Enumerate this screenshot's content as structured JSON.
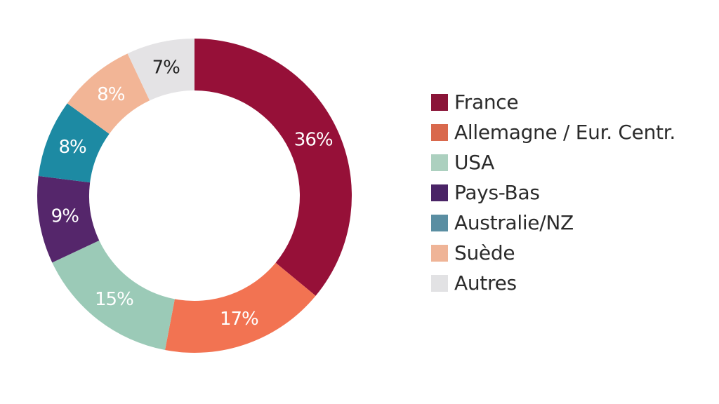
{
  "chart_data": {
    "type": "pie",
    "variant": "donut",
    "title": "",
    "legend_position": "right",
    "series": [
      {
        "name": "France",
        "value": 36,
        "label": "36%",
        "color": "#961038",
        "label_color": "#ffffff",
        "legend_color": "#8a1538"
      },
      {
        "name": "Allemagne / Eur. Centr.",
        "value": 17,
        "label": "17%",
        "color": "#f27352",
        "label_color": "#ffffff",
        "legend_color": "#d9694d"
      },
      {
        "name": "USA",
        "value": 15,
        "label": "15%",
        "color": "#9bcab7",
        "label_color": "#ffffff",
        "legend_color": "#acd0bf"
      },
      {
        "name": "Pays-Bas",
        "value": 9,
        "label": "9%",
        "color": "#55266b",
        "label_color": "#ffffff",
        "legend_color": "#4a2466"
      },
      {
        "name": "Australie/NZ",
        "value": 8,
        "label": "8%",
        "color": "#1d8aa3",
        "label_color": "#ffffff",
        "legend_color": "#5a8ea2"
      },
      {
        "name": "Suède",
        "value": 8,
        "label": "8%",
        "color": "#f2b596",
        "label_color": "#ffffff",
        "legend_color": "#efb497"
      },
      {
        "name": "Autres",
        "value": 7,
        "label": "7%",
        "color": "#e4e3e5",
        "label_color": "#222222",
        "legend_color": "#e2e2e4"
      }
    ]
  }
}
